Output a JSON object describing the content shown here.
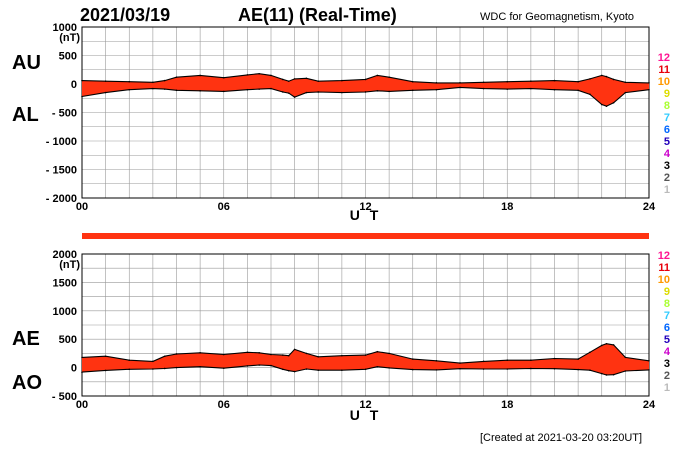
{
  "header": {
    "date": "2021/03/19",
    "title": "AE(11) (Real-Time)",
    "org": "WDC for Geomagnetism, Kyoto"
  },
  "footer": {
    "created": "[Created at 2021-03-20 03:20UT]"
  },
  "panel_labels": {
    "top_upper": "AU",
    "top_lower": "AL",
    "bottom_upper": "AE",
    "bottom_lower": "AO"
  },
  "station_scale": {
    "labels": [
      "12",
      "11",
      "10",
      "9",
      "8",
      "7",
      "6",
      "5",
      "4",
      "3",
      "2",
      "1"
    ],
    "colors": [
      "#ff1493",
      "#e8000b",
      "#ff9900",
      "#dddd00",
      "#aaff33",
      "#33ccff",
      "#0066ff",
      "#2200bb",
      "#cc00cc",
      "#000000",
      "#555555",
      "#bbbbbb"
    ]
  },
  "colors": {
    "fill": "#ff3311",
    "line": "#000000",
    "grid": "#999999",
    "strip": "#ff3311"
  },
  "chart_data": [
    {
      "type": "area",
      "series": [
        "AU",
        "AL"
      ],
      "unit_label": "(nT)",
      "xlabel": "U T",
      "xlim": [
        0,
        24
      ],
      "ylim": [
        -2000,
        1000
      ],
      "yticks": [
        1000,
        500,
        0,
        -500,
        -1000,
        -1500,
        -2000
      ],
      "ytick_labels": [
        "1000",
        "500",
        "0",
        "- 500",
        "- 1000",
        "- 1500",
        "- 2000"
      ],
      "xticks": [
        0,
        6,
        12,
        18,
        24
      ],
      "xtick_labels": [
        "00",
        "06",
        "12",
        "18",
        "24"
      ],
      "x": [
        0,
        1,
        2,
        3,
        3.5,
        4,
        5,
        6,
        7,
        7.5,
        8,
        8.5,
        8.75,
        9,
        9.5,
        10,
        11,
        12,
        12.5,
        13,
        14,
        15,
        16,
        17,
        18,
        19,
        20,
        21,
        21.5,
        22,
        22.2,
        22.5,
        23,
        24
      ],
      "upper": [
        60,
        50,
        40,
        30,
        60,
        120,
        150,
        110,
        160,
        180,
        150,
        80,
        50,
        90,
        100,
        50,
        60,
        80,
        150,
        120,
        40,
        20,
        20,
        30,
        40,
        50,
        60,
        40,
        90,
        150,
        130,
        80,
        30,
        20
      ],
      "lower": [
        -220,
        -150,
        -100,
        -80,
        -90,
        -110,
        -120,
        -130,
        -100,
        -90,
        -80,
        -140,
        -160,
        -230,
        -150,
        -140,
        -150,
        -140,
        -120,
        -130,
        -110,
        -100,
        -60,
        -80,
        -90,
        -80,
        -100,
        -110,
        -180,
        -360,
        -390,
        -330,
        -150,
        -100
      ]
    },
    {
      "type": "area",
      "series": [
        "AE",
        "AO"
      ],
      "unit_label": "(nT)",
      "xlabel": "U T",
      "xlim": [
        0,
        24
      ],
      "ylim": [
        -500,
        2000
      ],
      "yticks": [
        2000,
        1500,
        1000,
        500,
        0,
        -500
      ],
      "ytick_labels": [
        "2000",
        "1500",
        "1000",
        "500",
        "0",
        "- 500"
      ],
      "xticks": [
        0,
        6,
        12,
        18,
        24
      ],
      "xtick_labels": [
        "00",
        "06",
        "12",
        "18",
        "24"
      ],
      "x": [
        0,
        1,
        2,
        3,
        3.5,
        4,
        5,
        6,
        7,
        7.5,
        8,
        8.5,
        8.75,
        9,
        9.5,
        10,
        11,
        12,
        12.5,
        13,
        14,
        15,
        16,
        17,
        18,
        19,
        20,
        21,
        21.5,
        22,
        22.2,
        22.5,
        23,
        24
      ],
      "upper": [
        180,
        200,
        130,
        110,
        200,
        240,
        260,
        230,
        270,
        260,
        230,
        220,
        210,
        320,
        250,
        190,
        210,
        220,
        280,
        250,
        150,
        120,
        80,
        110,
        130,
        130,
        160,
        150,
        270,
        390,
        420,
        400,
        180,
        120
      ],
      "lower": [
        -80,
        -50,
        -30,
        -25,
        -15,
        0,
        15,
        -10,
        30,
        45,
        35,
        -30,
        -55,
        -70,
        -25,
        -45,
        -45,
        -30,
        15,
        -5,
        -35,
        -40,
        -20,
        -25,
        -25,
        -15,
        -20,
        -35,
        -45,
        -105,
        -130,
        -125,
        -60,
        -40
      ]
    }
  ]
}
